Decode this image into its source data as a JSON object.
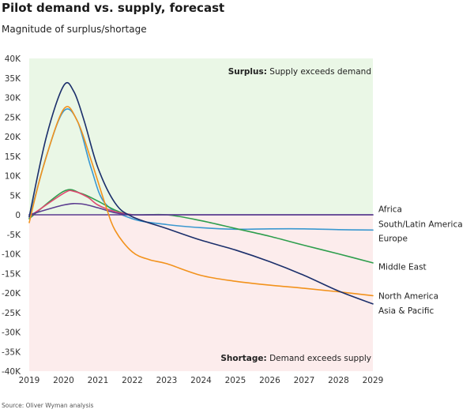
{
  "header": {
    "title": "Pilot demand vs. supply, forecast",
    "subtitle": "Magnitude of surplus/shortage"
  },
  "footer": {
    "source": "Source: Oliver Wyman analysis"
  },
  "colors": {
    "surplus_bg": "#eaf7e6",
    "shortage_bg": "#fcecec",
    "zero_line": "#333333"
  },
  "chart_data": {
    "type": "line",
    "xlim": [
      2019,
      2029
    ],
    "ylim": [
      -40000,
      40000
    ],
    "x_ticks": [
      2019,
      2020,
      2021,
      2022,
      2023,
      2024,
      2025,
      2026,
      2027,
      2028,
      2029
    ],
    "y_ticks": [
      40000,
      35000,
      30000,
      25000,
      20000,
      15000,
      10000,
      5000,
      0,
      -5000,
      -10000,
      -15000,
      -20000,
      -25000,
      -30000,
      -35000,
      -40000
    ],
    "y_tick_labels": [
      "40K",
      "35K",
      "30K",
      "25K",
      "20K",
      "15K",
      "10K",
      "5K",
      "0",
      "-5K",
      "-10K",
      "-15K",
      "-20K",
      "-25K",
      "-30K",
      "-35K",
      "-40K"
    ],
    "annotations": [
      {
        "bold": "Surplus:",
        "text": " Supply exceeds demand",
        "region": "top"
      },
      {
        "bold": "Shortage:",
        "text": " Demand exceeds supply",
        "region": "bottom"
      }
    ],
    "series": [
      {
        "name": "Africa",
        "color": "#5b3c8f",
        "points": [
          [
            2019,
            0
          ],
          [
            2020,
            2500
          ],
          [
            2020.5,
            2800
          ],
          [
            2021,
            1800
          ],
          [
            2021.5,
            500
          ],
          [
            2022,
            0
          ],
          [
            2023,
            0
          ],
          [
            2025,
            0
          ],
          [
            2027,
            0
          ],
          [
            2029,
            0
          ]
        ]
      },
      {
        "name": "South/Latin America",
        "color": "#5b3c8f",
        "points": [
          [
            2019,
            0
          ],
          [
            2022,
            0
          ],
          [
            2029,
            0
          ]
        ]
      },
      {
        "name": "Europe",
        "color": "#3a98d0",
        "points": [
          [
            2019,
            -1000
          ],
          [
            2019.5,
            15000
          ],
          [
            2020,
            26500
          ],
          [
            2020.4,
            24000
          ],
          [
            2020.8,
            12000
          ],
          [
            2021.2,
            3000
          ],
          [
            2022,
            -1000
          ],
          [
            2023,
            -2500
          ],
          [
            2024,
            -3300
          ],
          [
            2025,
            -3700
          ],
          [
            2026,
            -3600
          ],
          [
            2027,
            -3600
          ],
          [
            2028,
            -3800
          ],
          [
            2029,
            -3900
          ]
        ]
      },
      {
        "name": "Middle East",
        "color": "#2e9e4d",
        "points": [
          [
            2019,
            -1000
          ],
          [
            2020,
            6000
          ],
          [
            2020.5,
            5500
          ],
          [
            2021,
            3500
          ],
          [
            2021.5,
            1200
          ],
          [
            2022,
            0
          ],
          [
            2023,
            0
          ],
          [
            2024,
            -1500
          ],
          [
            2025,
            -3500
          ],
          [
            2026,
            -5500
          ],
          [
            2027,
            -7800
          ],
          [
            2028,
            -10000
          ],
          [
            2029,
            -12300
          ]
        ]
      },
      {
        "name": "North America",
        "color": "#f2921c",
        "points": [
          [
            2019,
            -2000
          ],
          [
            2019.4,
            12000
          ],
          [
            2020,
            27000
          ],
          [
            2020.4,
            24000
          ],
          [
            2020.8,
            14000
          ],
          [
            2021.2,
            3000
          ],
          [
            2021.5,
            -4000
          ],
          [
            2022,
            -9500
          ],
          [
            2022.5,
            -11500
          ],
          [
            2023,
            -12500
          ],
          [
            2024,
            -15500
          ],
          [
            2025,
            -17000
          ],
          [
            2026,
            -18000
          ],
          [
            2027,
            -18800
          ],
          [
            2028,
            -19700
          ],
          [
            2029,
            -20700
          ]
        ]
      },
      {
        "name": "Asia & Pacific",
        "color": "#1b2f6b",
        "points": [
          [
            2019,
            -500
          ],
          [
            2019.5,
            20000
          ],
          [
            2020,
            33000
          ],
          [
            2020.3,
            31500
          ],
          [
            2020.6,
            24000
          ],
          [
            2021,
            12000
          ],
          [
            2021.5,
            3000
          ],
          [
            2022,
            -500
          ],
          [
            2023,
            -3500
          ],
          [
            2024,
            -6500
          ],
          [
            2025,
            -9000
          ],
          [
            2026,
            -12000
          ],
          [
            2027,
            -15500
          ],
          [
            2028,
            -19500
          ],
          [
            2029,
            -22800
          ]
        ]
      },
      {
        "name": "Pink",
        "color": "#e04870",
        "points": [
          [
            2019,
            -500
          ],
          [
            2020,
            5500
          ],
          [
            2020.3,
            6000
          ],
          [
            2020.7,
            4500
          ],
          [
            2021,
            2500
          ],
          [
            2021.5,
            800
          ],
          [
            2022,
            0
          ]
        ]
      }
    ],
    "end_labels": [
      {
        "text": "Africa",
        "y": 1500
      },
      {
        "text": "South/Latin America",
        "y": -2300
      },
      {
        "text": "Europe",
        "y": -6000
      },
      {
        "text": "Middle East",
        "y": -13200
      },
      {
        "text": "North America",
        "y": -20700
      },
      {
        "text": "Asia & Pacific",
        "y": -24400
      }
    ]
  }
}
